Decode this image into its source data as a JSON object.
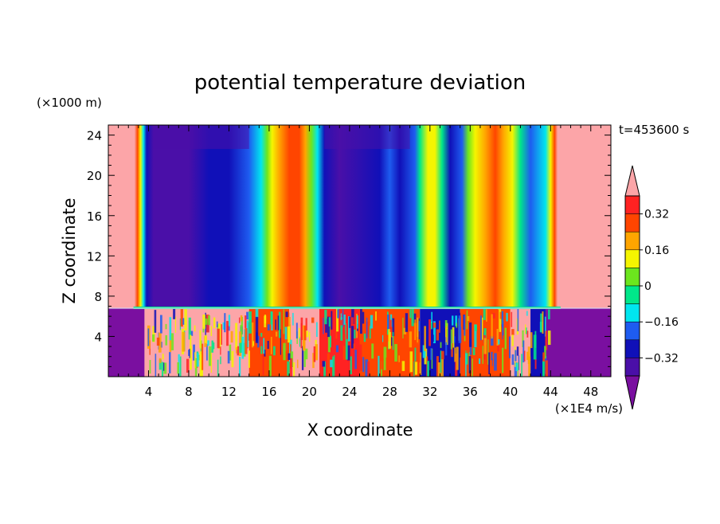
{
  "chart_data": {
    "type": "heatmap",
    "title": "potential temperature deviation",
    "time_label": "t=453600 s",
    "xlabel": "X coordinate",
    "ylabel": "Z coordinate",
    "x_unit": "(×1E4 m/s)",
    "y_unit": "(×1000 m)",
    "xlim": [
      0,
      50
    ],
    "ylim": [
      0,
      25
    ],
    "x_ticks": [
      "4",
      "8",
      "12",
      "16",
      "20",
      "24",
      "28",
      "32",
      "36",
      "40",
      "44",
      "48"
    ],
    "y_ticks": [
      "4",
      "8",
      "12",
      "16",
      "20",
      "24"
    ],
    "colorbar_labels": [
      "0.32",
      "0.16",
      "0",
      "−0.16",
      "−0.32"
    ],
    "colorbar_label_values": [
      0.32,
      0.16,
      0,
      -0.16,
      -0.32
    ],
    "levels": [
      -0.4,
      -0.32,
      -0.24,
      -0.16,
      -0.08,
      0,
      0.08,
      0.16,
      0.24,
      0.32,
      0.4
    ],
    "colors": [
      "#7a0fa0",
      "#4a0fa8",
      "#1010b8",
      "#1e5cf0",
      "#00e6ef",
      "#00e78a",
      "#6ce61e",
      "#f5f500",
      "#ffa500",
      "#ff4500",
      "#ff2222",
      "#fca5a8"
    ]
  }
}
